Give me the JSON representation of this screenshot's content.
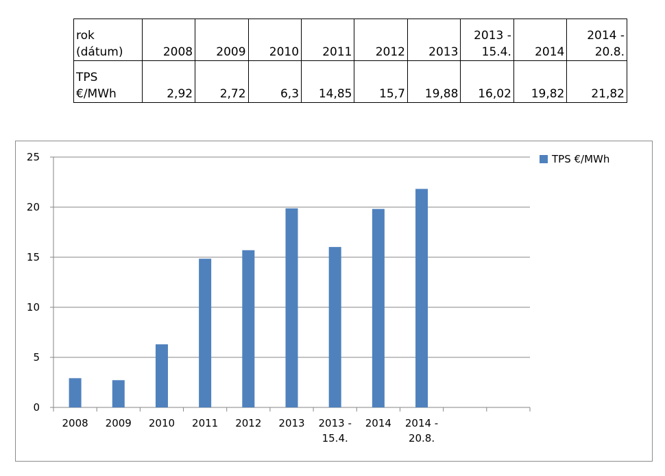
{
  "table": {
    "header_label": [
      "rok",
      "(dátum)"
    ],
    "value_label": [
      "TPS",
      "€/MWh"
    ],
    "columns": [
      {
        "date": [
          "",
          "2008"
        ],
        "value": "2,92"
      },
      {
        "date": [
          "",
          "2009"
        ],
        "value": "2,72"
      },
      {
        "date": [
          "",
          "2010"
        ],
        "value": "6,3"
      },
      {
        "date": [
          "",
          "2011"
        ],
        "value": "14,85"
      },
      {
        "date": [
          "",
          "2012"
        ],
        "value": "15,7"
      },
      {
        "date": [
          "",
          "2013"
        ],
        "value": "19,88"
      },
      {
        "date": [
          "2013 -",
          "15.4."
        ],
        "value": "16,02"
      },
      {
        "date": [
          "",
          "2014"
        ],
        "value": "19,82"
      },
      {
        "date": [
          "2014 -",
          "20.8."
        ],
        "value": "21,82"
      }
    ]
  },
  "chart_data": {
    "type": "bar",
    "title": "",
    "xlabel": "",
    "ylabel": "",
    "categories": [
      [
        "2008"
      ],
      [
        "2009"
      ],
      [
        "2010"
      ],
      [
        "2011"
      ],
      [
        "2012"
      ],
      [
        "2013"
      ],
      [
        "2013 -",
        "15.4."
      ],
      [
        "2014"
      ],
      [
        "2014 -",
        "20.8."
      ],
      [
        ""
      ],
      [
        ""
      ]
    ],
    "series": [
      {
        "name": "TPS €/MWh",
        "values": [
          2.92,
          2.72,
          6.3,
          14.85,
          15.7,
          19.88,
          16.02,
          19.82,
          21.82,
          null,
          null
        ]
      }
    ],
    "ylim": [
      0,
      25
    ],
    "yticks": [
      0,
      5,
      10,
      15,
      20,
      25
    ],
    "grid": true,
    "legend": "right",
    "colors": {
      "bar": "#4f81bd",
      "grid": "#868686",
      "axis": "#868686"
    }
  }
}
